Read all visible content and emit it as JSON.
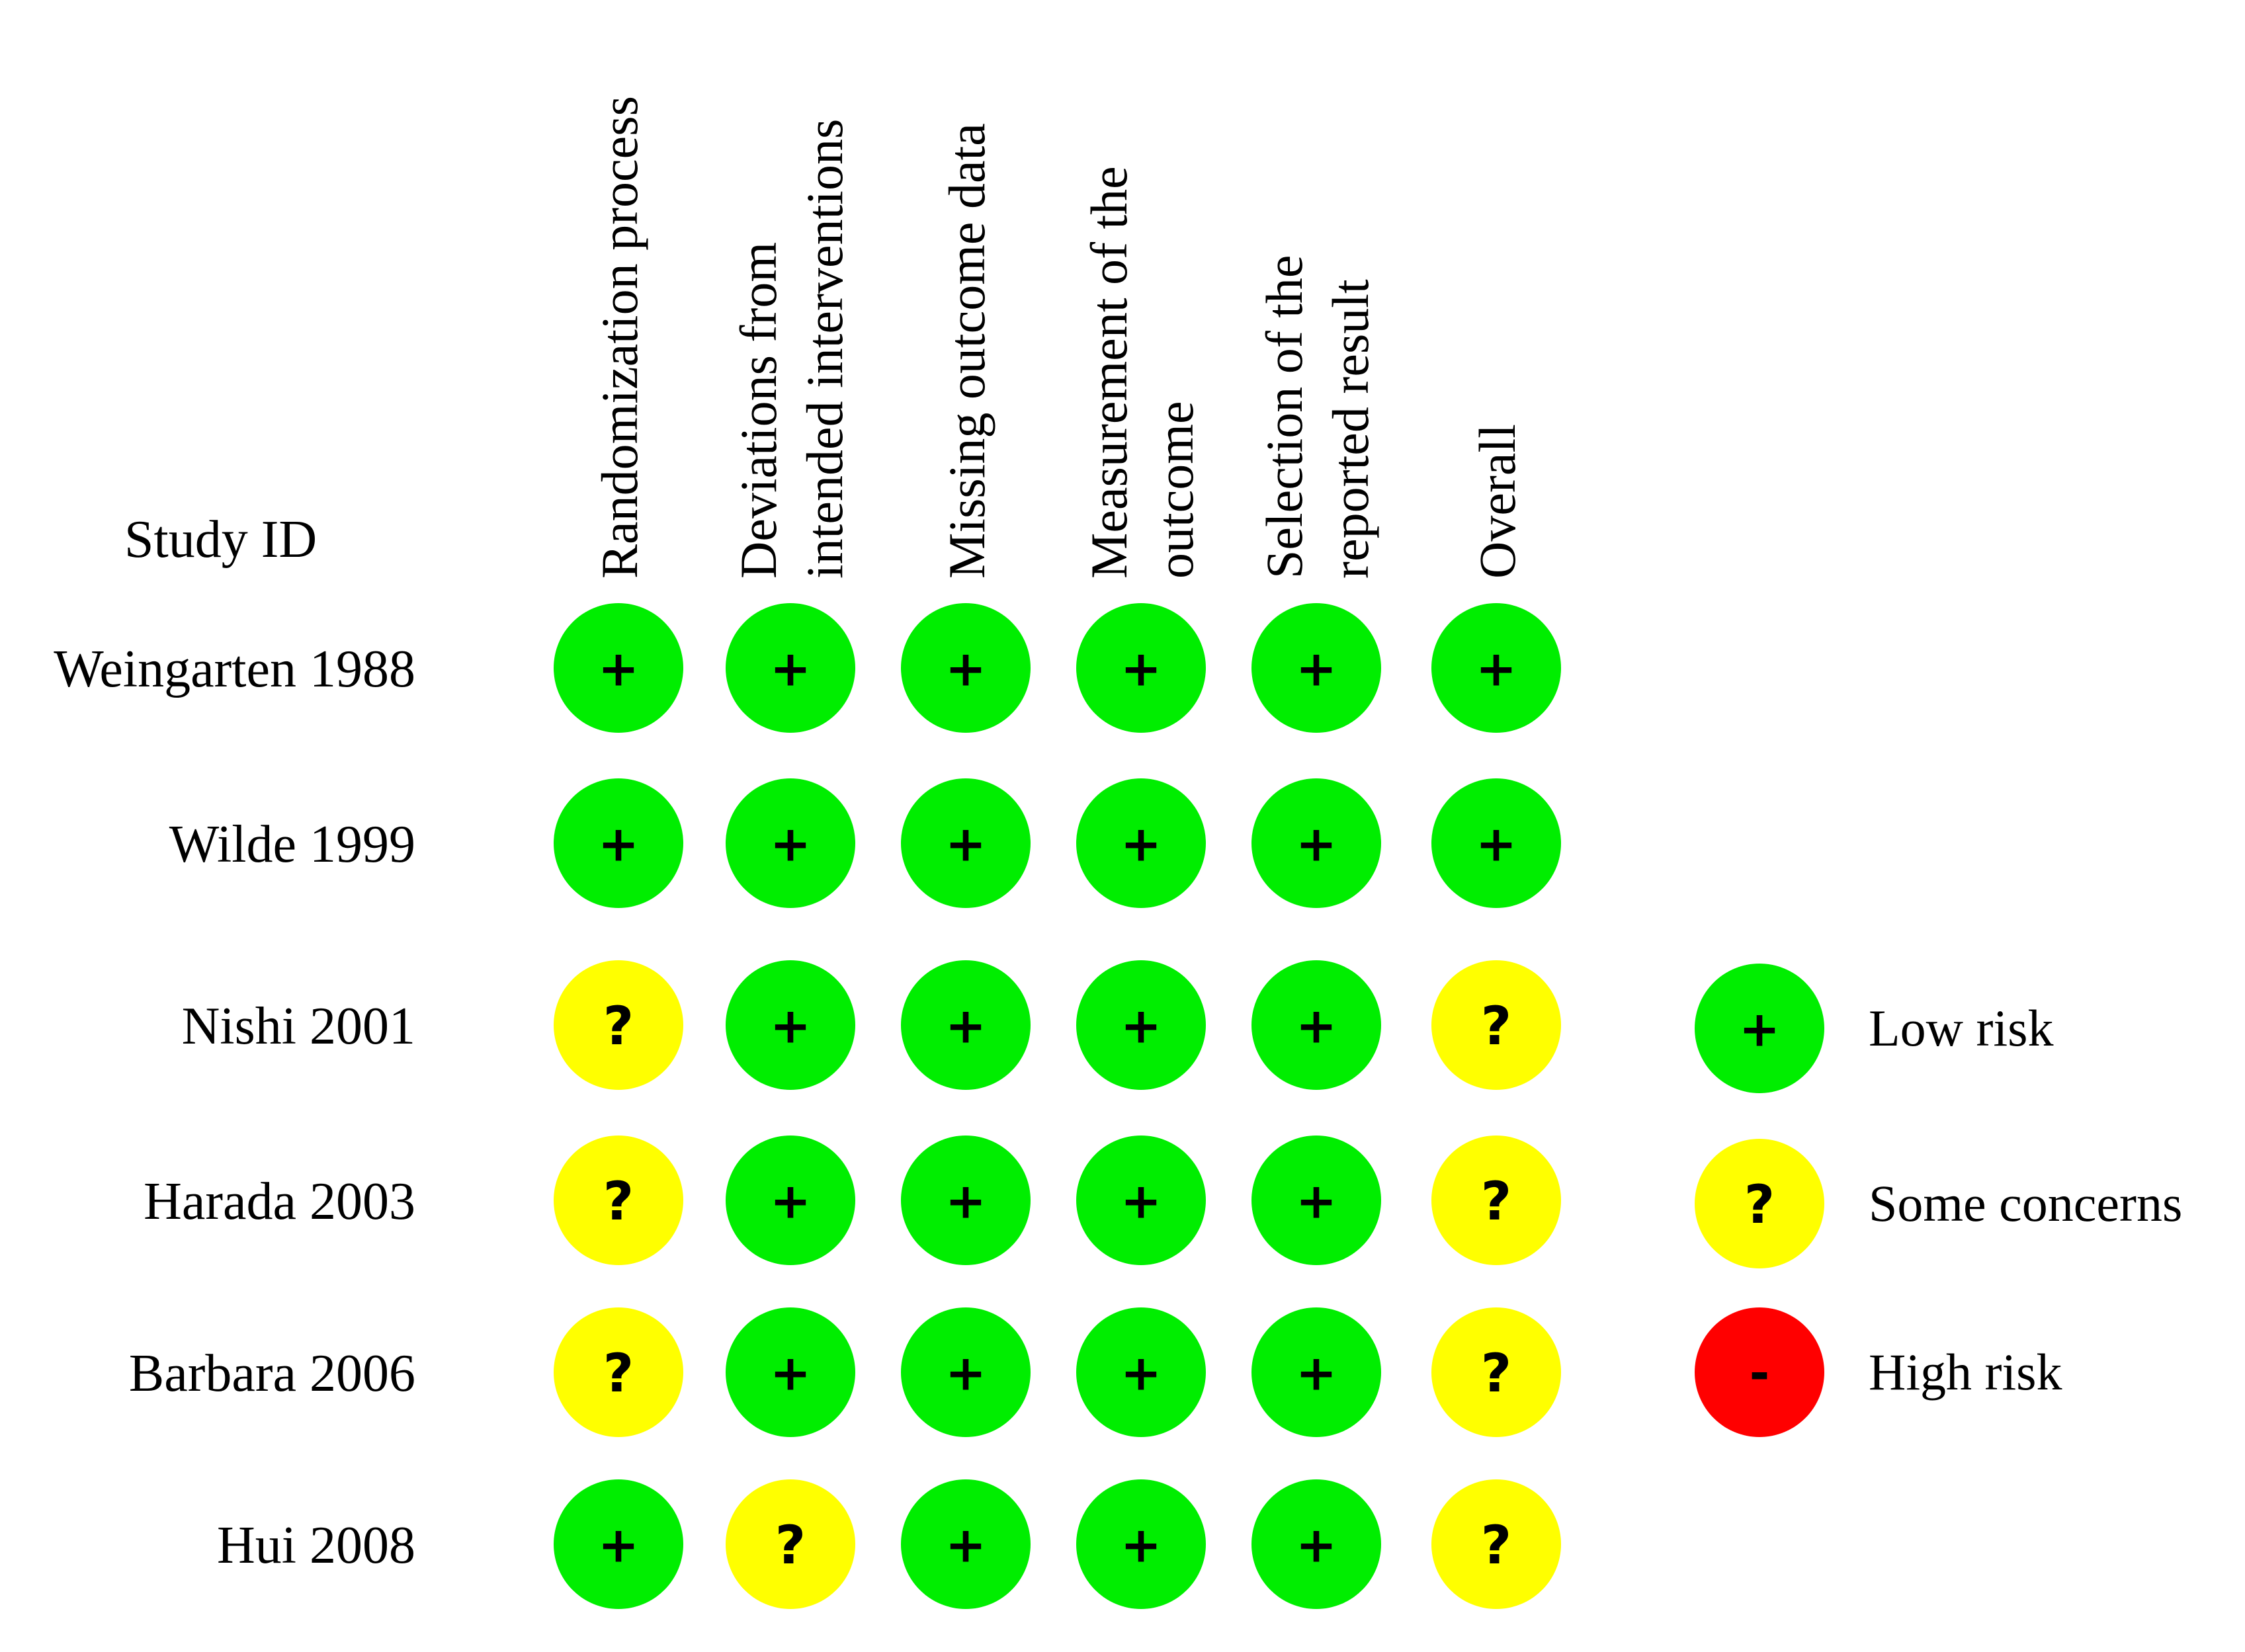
{
  "chart_data": {
    "type": "table",
    "title": "",
    "row_header": "Study ID",
    "columns": [
      [
        "Randomization process"
      ],
      [
        "Deviations from",
        "intended interventions"
      ],
      [
        "Missing outcome data"
      ],
      [
        "Measurement of the",
        "outcome"
      ],
      [
        "Selection of the",
        "reported result"
      ],
      [
        "Overall"
      ]
    ],
    "rows": [
      {
        "study": "Weingarten 1988",
        "judgements": [
          "low",
          "low",
          "low",
          "low",
          "low",
          "low"
        ]
      },
      {
        "study": "Wilde 1999",
        "judgements": [
          "low",
          "low",
          "low",
          "low",
          "low",
          "low"
        ]
      },
      {
        "study": "Nishi 2001",
        "judgements": [
          "some",
          "low",
          "low",
          "low",
          "low",
          "some"
        ]
      },
      {
        "study": "Harada 2003",
        "judgements": [
          "some",
          "low",
          "low",
          "low",
          "low",
          "some"
        ]
      },
      {
        "study": "Barbara 2006",
        "judgements": [
          "some",
          "low",
          "low",
          "low",
          "low",
          "some"
        ]
      },
      {
        "study": "Hui 2008",
        "judgements": [
          "low",
          "some",
          "low",
          "low",
          "low",
          "some"
        ]
      }
    ],
    "legend": [
      {
        "key": "low",
        "symbol": "+",
        "label": "Low risk",
        "color": "#00ee00"
      },
      {
        "key": "some",
        "symbol": "?",
        "label": "Some concerns",
        "color": "#ffff00"
      },
      {
        "key": "high",
        "symbol": "-",
        "label": "High risk",
        "color": "#ff0000"
      }
    ]
  }
}
